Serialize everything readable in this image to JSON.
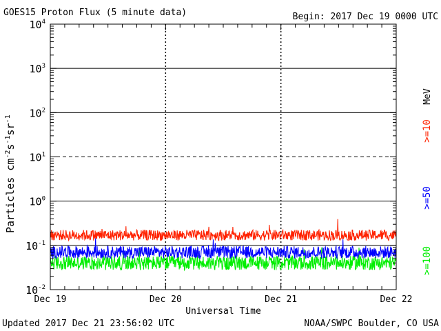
{
  "chart_data": {
    "type": "line",
    "title": "GOES15 Proton Flux (5 minute data)",
    "begin_label": "Begin: 2017 Dec 19 0000 UTC",
    "xlabel": "Universal Time",
    "ylabel_main": "Particles cm",
    "ylabel_sup1": "-2",
    "ylabel_mid1": "s",
    "ylabel_sup2": "-1",
    "ylabel_mid2": "sr",
    "ylabel_sup3": "-1",
    "y_scale": "log",
    "ylim": [
      0.01,
      10000
    ],
    "y_ticks": [
      {
        "base": "10",
        "exp": "4"
      },
      {
        "base": "10",
        "exp": "3"
      },
      {
        "base": "10",
        "exp": "2"
      },
      {
        "base": "10",
        "exp": "1"
      },
      {
        "base": "10",
        "exp": "0"
      },
      {
        "base": "10",
        "exp": "-1"
      },
      {
        "base": "10",
        "exp": "-2"
      }
    ],
    "x_ticks": [
      "Dec 19",
      "Dec 20",
      "Dec 21",
      "Dec 22"
    ],
    "xlim_days": [
      0,
      3
    ],
    "legend_unit": "MeV",
    "series": [
      {
        "name": ">=10",
        "color": "#ff2200",
        "baseline": 0.17,
        "noise": 0.12,
        "max_spike": 0.5
      },
      {
        "name": ">=50",
        "color": "#0000ff",
        "baseline": 0.07,
        "noise": 0.14,
        "max_spike": 0.18
      },
      {
        "name": ">=100",
        "color": "#00ee00",
        "baseline": 0.04,
        "noise": 0.16,
        "max_spike": 0.09
      }
    ]
  },
  "footer": {
    "updated": "Updated 2017 Dec 21 23:56:02 UTC",
    "source": "NOAA/SWPC Boulder, CO USA"
  }
}
